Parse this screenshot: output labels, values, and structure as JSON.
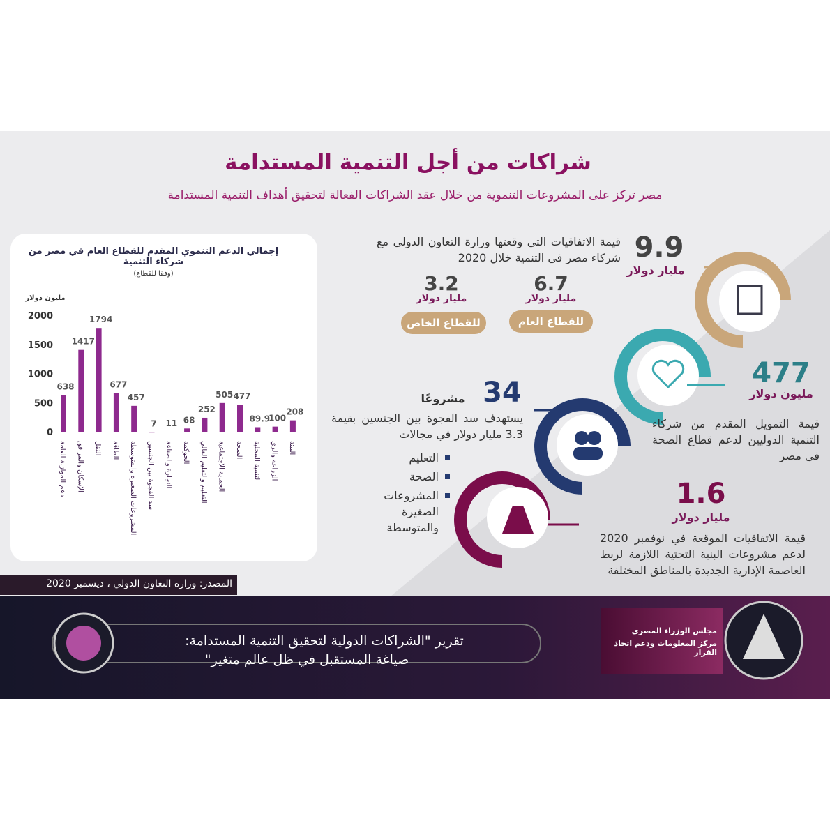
{
  "header": {
    "title": "شراكات من أجل التنمية المستدامة",
    "subtitle": "مصر تركز على المشروعات التنموية من خلال عقد الشراكات الفعالة لتحقيق أهداف التنمية المستدامة"
  },
  "chart_data": {
    "type": "bar",
    "title": "إجمالي الدعم التنموي المقدم للقطاع العام في مصر من شركاء التنمية",
    "subtitle": "(وفقا للقطاع)",
    "y_label": "مليون دولار",
    "categories": [
      "دعم الموازنة العامة",
      "الإسكان والمرافق",
      "النقل",
      "الطاقة",
      "المشروعات الصغيرة والمتوسطة",
      "سد الفجوة بين الجنسين",
      "التجارة والصناعة",
      "الحوكمة",
      "التعليم والتعليم العالي",
      "الحماية الاجتماعية",
      "الصحة",
      "التنمية المحلية",
      "الزراعة والري",
      "البيئة"
    ],
    "values": [
      638,
      1417,
      1794,
      677,
      457,
      7,
      11,
      68,
      252,
      505,
      477,
      89.9,
      100,
      208
    ],
    "color": "#8e2a8e",
    "ylim": [
      0,
      2000
    ],
    "yticks": [
      0,
      500,
      1000,
      1500,
      2000
    ]
  },
  "stats": {
    "agreements": {
      "value": "9.9",
      "unit": "مليار دولار",
      "text": "قيمة الاتفاقيات التي وقعتها وزارة التعاون الدولي مع شركاء مصر في التنمية خلال 2020"
    },
    "public": {
      "value": "6.7",
      "unit": "مليار دولار",
      "label": "للقطاع العام"
    },
    "private": {
      "value": "3.2",
      "unit": "مليار دولار",
      "label": "للقطاع الخاص"
    },
    "health": {
      "value": "477",
      "unit": "مليون دولار",
      "text": "قيمة التمويل المقدم من شركاء التنمية الدوليين لدعم قطاع الصحة في مصر"
    },
    "gender": {
      "value": "34",
      "unit": "مشروعًا",
      "text": "يستهدف سد الفجوة بين الجنسين بقيمة 3.3 مليار دولار في مجالات",
      "items": [
        "التعليم",
        "الصحة",
        "المشروعات الصغيرة والمتوسطة"
      ]
    },
    "infra": {
      "value": "1.6",
      "unit": "مليار دولار",
      "text": "قيمة الاتفاقيات الموقعة في نوفمبر 2020 لدعم مشروعات البنية التحتية اللازمة لربط العاصمة الإدارية الجديدة بالمناطق المختلفة"
    }
  },
  "source": "المصدر: وزارة التعاون الدولي ، ديسمبر 2020",
  "footer": {
    "report_line_1": "تقرير \"الشراكات الدولية لتحقيق التنمية المستدامة:",
    "report_line_2": "صياغة المستقبل في ظل عالم متغير\"",
    "org_1": "مجلس الوزراء المصرى",
    "org_2": "مركز المعلومات ودعم اتخاذ القرار"
  }
}
